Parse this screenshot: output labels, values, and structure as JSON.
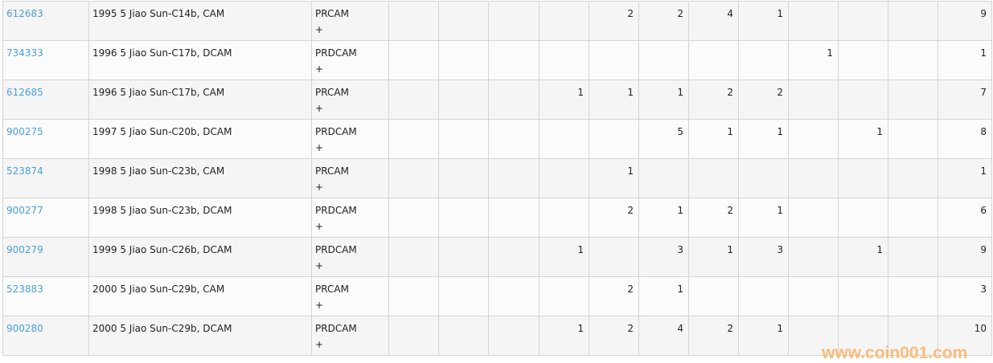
{
  "rows": [
    {
      "id": "612683",
      "description": "1995 5 Jiao Sun-C14b, CAM",
      "grade": "PRCAM",
      "expand": "+",
      "counts": [
        "",
        "",
        "",
        "",
        "2",
        "2",
        "4",
        "1",
        "",
        "",
        ""
      ],
      "total": "9"
    },
    {
      "id": "734333",
      "description": "1996 5 Jiao Sun-C17b, DCAM",
      "grade": "PRDCAM",
      "expand": "+",
      "counts": [
        "",
        "",
        "",
        "",
        "",
        "",
        "",
        "",
        "1",
        "",
        ""
      ],
      "total": "1"
    },
    {
      "id": "612685",
      "description": "1996 5 Jiao Sun-C17b, CAM",
      "grade": "PRCAM",
      "expand": "+",
      "counts": [
        "",
        "",
        "",
        "1",
        "1",
        "1",
        "2",
        "2",
        "",
        "",
        ""
      ],
      "total": "7"
    },
    {
      "id": "900275",
      "description": "1997 5 Jiao Sun-C20b, DCAM",
      "grade": "PRDCAM",
      "expand": "+",
      "counts": [
        "",
        "",
        "",
        "",
        "",
        "5",
        "1",
        "1",
        "",
        "1",
        ""
      ],
      "total": "8"
    },
    {
      "id": "523874",
      "description": "1998 5 Jiao Sun-C23b, CAM",
      "grade": "PRCAM",
      "expand": "+",
      "counts": [
        "",
        "",
        "",
        "",
        "1",
        "",
        "",
        "",
        "",
        "",
        ""
      ],
      "total": "1"
    },
    {
      "id": "900277",
      "description": "1998 5 Jiao Sun-C23b, DCAM",
      "grade": "PRDCAM",
      "expand": "+",
      "counts": [
        "",
        "",
        "",
        "",
        "2",
        "1",
        "2",
        "1",
        "",
        "",
        ""
      ],
      "total": "6"
    },
    {
      "id": "900279",
      "description": "1999 5 Jiao Sun-C26b, DCAM",
      "grade": "PRDCAM",
      "expand": "+",
      "counts": [
        "",
        "",
        "",
        "1",
        "",
        "3",
        "1",
        "3",
        "",
        "1",
        ""
      ],
      "total": "9"
    },
    {
      "id": "523883",
      "description": "2000 5 Jiao Sun-C29b, CAM",
      "grade": "PRCAM",
      "expand": "+",
      "counts": [
        "",
        "",
        "",
        "",
        "2",
        "1",
        "",
        "",
        "",
        "",
        ""
      ],
      "total": "3"
    },
    {
      "id": "900280",
      "description": "2000 5 Jiao Sun-C29b, DCAM",
      "grade": "PRDCAM",
      "expand": "+",
      "counts": [
        "",
        "",
        "",
        "1",
        "2",
        "4",
        "2",
        "1",
        "",
        "",
        ""
      ],
      "total": "10"
    }
  ],
  "watermark": "www.coin001.com",
  "colors": {
    "link": "#4a9fe0",
    "watermark": "#fcb366"
  }
}
